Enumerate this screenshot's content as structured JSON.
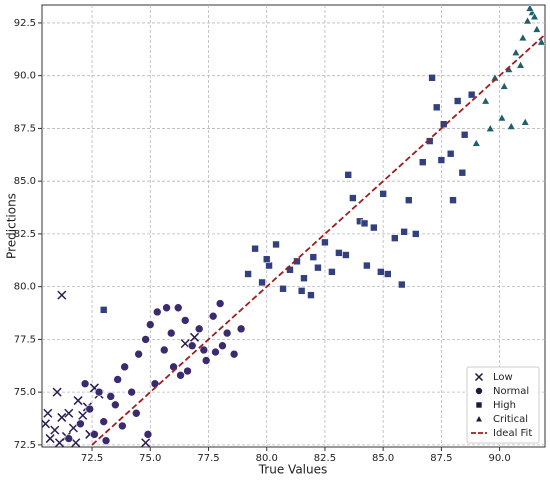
{
  "chart_data": {
    "type": "scatter",
    "x_label": "True Values",
    "y_label": "Predictions",
    "xlim": [
      70.35,
      91.95
    ],
    "ylim": [
      72.4,
      93.35
    ],
    "xticks": [
      72.5,
      {
        "value": 75,
        "label": "75.0"
      },
      77.5,
      {
        "value": 80,
        "label": "80.0"
      },
      82.5,
      {
        "value": 85,
        "label": "85.0"
      },
      87.5,
      {
        "value": 90,
        "label": "90.0"
      }
    ],
    "yticks": [
      72.5,
      {
        "value": 75,
        "label": "75.0"
      },
      77.5,
      {
        "value": 80,
        "label": "80.0"
      },
      82.5,
      {
        "value": 85,
        "label": "85.0"
      },
      87.5,
      {
        "value": 90,
        "label": "90.0"
      },
      92.5
    ],
    "grid": true,
    "legend": "lower right",
    "series": [
      {
        "name": "Low",
        "marker": "x",
        "color": "#2b1d4e",
        "x": [
          70.5,
          70.7,
          70.9,
          71.0,
          71.2,
          71.4,
          71.5,
          71.7,
          71.9,
          72.1,
          72.3,
          72.6,
          72.8,
          71.1,
          70.6,
          71.8,
          72.4,
          74.8,
          71.2,
          76.5,
          76.9
        ],
        "y": [
          73.5,
          72.8,
          73.2,
          75.0,
          73.8,
          72.9,
          74.0,
          73.3,
          74.6,
          73.9,
          74.3,
          75.2,
          74.9,
          72.6,
          74.0,
          72.6,
          73.0,
          72.6,
          79.6,
          77.3,
          77.6
        ]
      },
      {
        "name": "Normal",
        "marker": "circle",
        "color": "#3b2a6e",
        "x": [
          71.5,
          72.0,
          72.4,
          72.8,
          73.0,
          73.3,
          73.6,
          73.9,
          74.2,
          74.5,
          74.8,
          75.0,
          75.3,
          75.6,
          75.9,
          76.2,
          76.5,
          76.8,
          77.1,
          77.4,
          77.7,
          78.0,
          78.3,
          78.6,
          78.9,
          72.6,
          73.1,
          73.8,
          74.4,
          75.2,
          76.0,
          76.6,
          77.3,
          78.1,
          74.9,
          75.7,
          72.2,
          73.5,
          76.3,
          77.8
        ],
        "y": [
          72.8,
          73.5,
          74.2,
          75.0,
          73.6,
          74.8,
          75.6,
          76.2,
          75.0,
          76.8,
          77.5,
          78.2,
          78.8,
          77.0,
          77.8,
          79.0,
          78.4,
          77.2,
          78.0,
          76.5,
          78.6,
          79.2,
          77.8,
          76.8,
          78.0,
          73.0,
          72.7,
          73.4,
          74.0,
          75.4,
          76.2,
          76.0,
          77.0,
          77.2,
          73.0,
          79.0,
          75.4,
          74.4,
          75.8,
          76.9
        ]
      },
      {
        "name": "High",
        "marker": "square",
        "color": "#33407f",
        "x": [
          73.0,
          79.2,
          79.5,
          79.8,
          80.1,
          80.4,
          80.7,
          81.0,
          81.3,
          81.6,
          81.9,
          82.2,
          82.5,
          82.8,
          83.1,
          83.4,
          83.7,
          84.0,
          84.3,
          84.6,
          84.9,
          85.2,
          85.5,
          85.8,
          86.1,
          86.4,
          87.0,
          87.3,
          87.6,
          87.9,
          88.2,
          88.5,
          88.8,
          87.1,
          87.5,
          88.0,
          88.4,
          83.5,
          84.2,
          85.0,
          85.9,
          80.0,
          81.5,
          82.0,
          86.7
        ],
        "y": [
          78.9,
          80.6,
          81.8,
          80.2,
          81.0,
          82.0,
          79.9,
          80.8,
          81.2,
          80.4,
          79.6,
          80.9,
          82.1,
          80.7,
          81.6,
          81.5,
          84.2,
          83.1,
          81.0,
          82.8,
          80.7,
          80.6,
          82.3,
          80.1,
          84.1,
          82.5,
          86.9,
          88.5,
          87.7,
          86.3,
          88.8,
          87.2,
          89.1,
          89.9,
          86.0,
          84.1,
          85.4,
          85.3,
          83.0,
          84.4,
          82.6,
          81.3,
          79.8,
          81.4,
          85.9
        ]
      },
      {
        "name": "Critical",
        "marker": "triangle",
        "color": "#1f5f6e",
        "x": [
          89.0,
          89.4,
          89.8,
          90.1,
          90.4,
          90.7,
          91.0,
          91.2,
          91.4,
          91.6,
          91.8,
          90.5,
          91.1,
          89.6,
          90.9,
          91.5,
          90.2,
          91.3
        ],
        "y": [
          86.8,
          88.8,
          89.9,
          88.0,
          90.3,
          91.1,
          91.8,
          92.6,
          93.0,
          92.2,
          91.6,
          87.6,
          87.8,
          87.5,
          90.5,
          92.8,
          89.5,
          93.2
        ]
      }
    ],
    "ideal_fit": {
      "name": "Ideal Fit",
      "color": "#a11c1c",
      "x": [
        72.5,
        92
      ],
      "y": [
        72.5,
        92
      ]
    }
  }
}
